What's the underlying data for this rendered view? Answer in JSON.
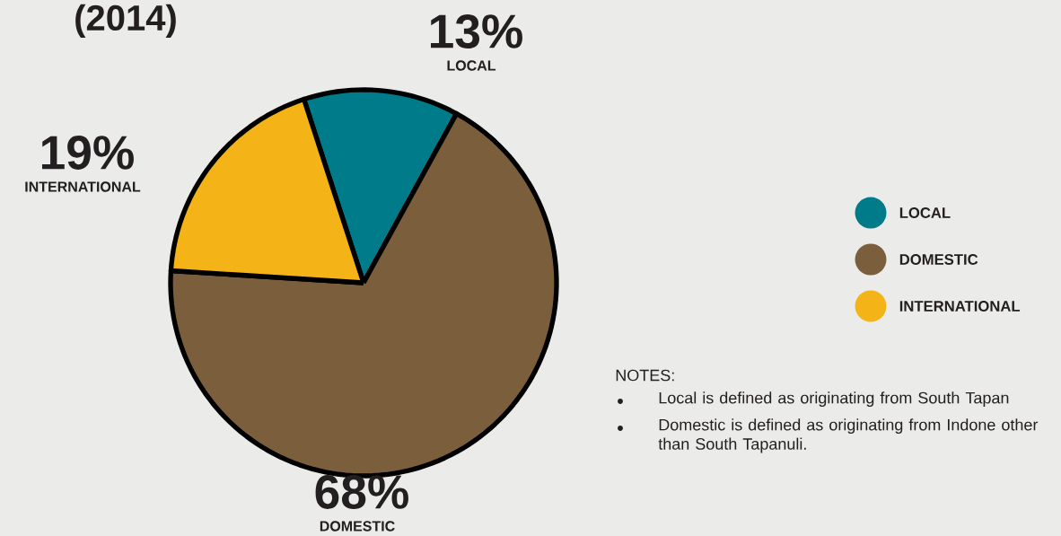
{
  "chart_data": {
    "type": "pie",
    "title": "(2014)",
    "categories": [
      "LOCAL",
      "DOMESTIC",
      "INTERNATIONAL"
    ],
    "values": [
      13,
      68,
      19
    ],
    "colors": [
      "#007b8a",
      "#7b5e3c",
      "#f4b317"
    ],
    "value_labels": [
      "13%",
      "68%",
      "19%"
    ],
    "legend": "right",
    "annotations": [
      "NOTES:",
      "Local is defined as originating from South Tapan",
      "Domestic is defined as originating from Indone other than South Tapanuli."
    ]
  }
}
